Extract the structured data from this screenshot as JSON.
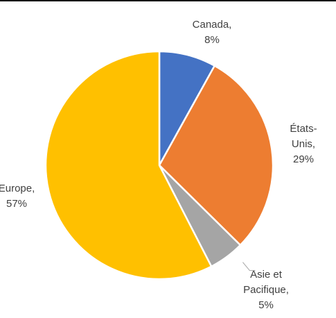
{
  "chart_data": {
    "type": "pie",
    "title": "",
    "slices": [
      {
        "label": "Canada",
        "value": 8,
        "value_label": "8%",
        "color": "#4472C4",
        "label_lines": [
          "Canada,",
          "8%"
        ]
      },
      {
        "label": "États-Unis",
        "value": 29,
        "value_label": "29%",
        "color": "#ED7D31",
        "label_lines": [
          "États-",
          "Unis,",
          "29%"
        ]
      },
      {
        "label": "Asie et Pacifique",
        "value": 5,
        "value_label": "5%",
        "color": "#A5A5A5",
        "label_lines": [
          "Asie et",
          "Pacifique,",
          "5%"
        ]
      },
      {
        "label": "Europe",
        "value": 57,
        "value_label": "57%",
        "color": "#FFC000",
        "label_lines": [
          "Europe,",
          "57%"
        ]
      }
    ],
    "legend": "none",
    "start_angle_deg": 0,
    "direction": "clockwise",
    "slice_border_color": "#ffffff"
  }
}
